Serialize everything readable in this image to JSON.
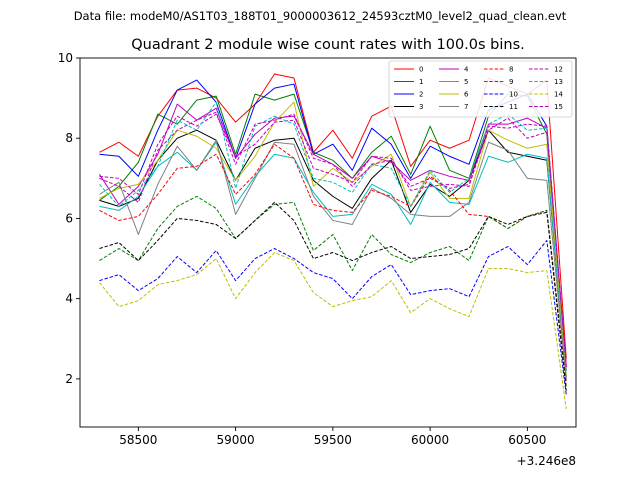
{
  "figure": {
    "suptitle": "Data file: modeM0/AS1T03_188T01_9000003612_24593cztM0_level2_quad_clean.evt"
  },
  "chart_data": {
    "type": "line",
    "title": "Quadrant 2 module wise count rates with 100.0s bins.",
    "xlabel": "",
    "ylabel": "",
    "x_offset_label": "+3.246e8",
    "xlim": [
      58200,
      60750
    ],
    "ylim": [
      0.8,
      10
    ],
    "xticks": [
      58500,
      59000,
      59500,
      60000,
      60500
    ],
    "xtick_labels": [
      "58500",
      "59000",
      "59500",
      "60000",
      "60500"
    ],
    "yticks": [
      2,
      4,
      6,
      8,
      10
    ],
    "ytick_labels": [
      "2",
      "4",
      "6",
      "8",
      "10"
    ],
    "grid": false,
    "legend_placement": "top-right",
    "x": [
      58300,
      58400,
      58500,
      58600,
      58700,
      58800,
      58900,
      59000,
      59100,
      59200,
      59300,
      59400,
      59500,
      59600,
      59700,
      59800,
      59900,
      60000,
      60100,
      60200,
      60300,
      60400,
      60500,
      60600,
      60700
    ],
    "series": [
      {
        "name": "0",
        "color": "#ff0000",
        "dash": "solid",
        "values": [
          7.65,
          7.9,
          7.55,
          8.55,
          9.2,
          9.25,
          9.0,
          8.4,
          8.85,
          9.6,
          9.5,
          7.65,
          8.2,
          7.5,
          8.55,
          8.8,
          7.3,
          7.95,
          7.75,
          7.95,
          9.5,
          9.3,
          9.1,
          9.45,
          2.5
        ]
      },
      {
        "name": "1",
        "color": "#008000",
        "dash": "solid",
        "values": [
          6.45,
          6.8,
          7.4,
          8.6,
          8.35,
          8.95,
          9.05,
          7.6,
          9.1,
          8.95,
          9.1,
          7.65,
          7.45,
          7.0,
          7.65,
          8.05,
          7.1,
          8.3,
          7.2,
          7.0,
          8.55,
          9.1,
          9.05,
          8.1,
          2.3
        ]
      },
      {
        "name": "2",
        "color": "#0000ff",
        "dash": "solid",
        "values": [
          7.6,
          7.55,
          7.05,
          8.2,
          9.2,
          9.45,
          8.9,
          7.5,
          8.85,
          9.25,
          9.35,
          7.6,
          7.85,
          7.2,
          8.25,
          7.85,
          7.0,
          7.8,
          7.55,
          7.35,
          8.7,
          8.9,
          9.1,
          8.3,
          2.2
        ]
      },
      {
        "name": "3",
        "color": "#000000",
        "dash": "solid",
        "values": [
          6.45,
          6.3,
          6.5,
          7.45,
          8.0,
          8.2,
          7.95,
          6.95,
          7.75,
          7.95,
          8.0,
          6.95,
          6.55,
          6.25,
          7.0,
          7.45,
          6.15,
          6.85,
          6.55,
          6.95,
          8.2,
          7.65,
          7.55,
          7.45,
          2.05
        ]
      },
      {
        "name": "4",
        "color": "#bf00bf",
        "dash": "solid",
        "values": [
          7.1,
          6.35,
          6.8,
          7.6,
          8.85,
          8.45,
          8.75,
          7.5,
          8.1,
          8.5,
          8.55,
          7.6,
          7.35,
          7.0,
          7.55,
          7.4,
          6.95,
          7.2,
          7.05,
          6.95,
          8.35,
          8.35,
          8.5,
          8.25,
          2.3
        ]
      },
      {
        "name": "5",
        "color": "#00bfbf",
        "dash": "solid",
        "values": [
          6.3,
          6.2,
          6.55,
          7.3,
          7.65,
          7.2,
          7.9,
          6.35,
          7.05,
          7.6,
          7.5,
          6.65,
          6.05,
          6.1,
          6.85,
          6.6,
          5.85,
          6.9,
          6.4,
          6.35,
          7.55,
          7.4,
          7.6,
          7.5,
          2.0
        ]
      },
      {
        "name": "6",
        "color": "#bfbf00",
        "dash": "solid",
        "values": [
          6.5,
          6.75,
          6.85,
          7.45,
          8.2,
          8.05,
          7.75,
          6.95,
          7.55,
          8.4,
          8.9,
          6.8,
          7.25,
          6.9,
          7.3,
          7.6,
          6.3,
          7.15,
          6.5,
          6.5,
          8.2,
          7.95,
          7.75,
          7.85,
          2.1
        ]
      },
      {
        "name": "7",
        "color": "#808080",
        "dash": "solid",
        "values": [
          6.6,
          6.9,
          5.6,
          6.85,
          7.8,
          7.2,
          7.95,
          6.1,
          7.0,
          7.9,
          7.85,
          6.55,
          5.95,
          5.85,
          6.75,
          6.5,
          6.1,
          6.05,
          6.05,
          6.4,
          7.9,
          7.7,
          7.0,
          6.95,
          1.95
        ]
      },
      {
        "name": "8",
        "color": "#ff0000",
        "dash": "dashed",
        "values": [
          6.2,
          5.95,
          6.05,
          6.6,
          7.25,
          7.3,
          7.6,
          6.6,
          7.1,
          7.85,
          7.5,
          6.35,
          6.2,
          6.15,
          6.7,
          6.55,
          6.3,
          7.05,
          6.7,
          6.1,
          6.05,
          5.75,
          6.05,
          6.2,
          1.9
        ]
      },
      {
        "name": "9",
        "color": "#008000",
        "dash": "dashed",
        "values": [
          4.95,
          5.25,
          4.95,
          5.75,
          6.3,
          6.55,
          6.25,
          5.5,
          5.95,
          6.35,
          6.4,
          5.2,
          5.6,
          4.7,
          5.6,
          5.1,
          4.9,
          5.15,
          5.3,
          4.95,
          6.05,
          5.75,
          6.05,
          6.2,
          1.8
        ]
      },
      {
        "name": "10",
        "color": "#0000ff",
        "dash": "dashed",
        "values": [
          4.45,
          4.6,
          4.2,
          4.5,
          5.05,
          4.65,
          5.2,
          4.45,
          5.0,
          5.25,
          5.0,
          4.65,
          4.5,
          4.0,
          4.55,
          4.85,
          4.1,
          4.2,
          4.25,
          4.05,
          5.05,
          5.3,
          4.85,
          5.45,
          1.6
        ]
      },
      {
        "name": "11",
        "color": "#000000",
        "dash": "dashed",
        "values": [
          5.25,
          5.4,
          4.95,
          5.45,
          6.0,
          5.95,
          5.85,
          5.5,
          5.95,
          6.4,
          5.95,
          5.0,
          5.15,
          4.95,
          5.15,
          5.3,
          5.0,
          5.05,
          5.1,
          5.25,
          6.05,
          5.85,
          6.05,
          6.15,
          1.7
        ]
      },
      {
        "name": "12",
        "color": "#bf00bf",
        "dash": "dashed",
        "values": [
          7.05,
          7.0,
          6.6,
          7.85,
          8.55,
          8.3,
          8.6,
          7.55,
          7.85,
          8.4,
          8.45,
          7.25,
          7.1,
          6.9,
          7.55,
          7.5,
          6.7,
          6.8,
          6.85,
          6.8,
          8.3,
          8.25,
          8.35,
          8.3,
          2.3
        ]
      },
      {
        "name": "13",
        "color": "#00bfbf",
        "dash": "dashed",
        "values": [
          6.85,
          6.3,
          6.7,
          7.3,
          8.45,
          8.2,
          8.9,
          6.75,
          8.3,
          8.55,
          8.35,
          7.0,
          6.9,
          6.65,
          7.35,
          7.25,
          6.3,
          7.2,
          6.65,
          7.0,
          8.35,
          8.6,
          8.2,
          8.25,
          2.2
        ]
      },
      {
        "name": "14",
        "color": "#bfbf00",
        "dash": "dashed",
        "values": [
          4.4,
          3.8,
          3.95,
          4.35,
          4.45,
          4.6,
          5.0,
          4.0,
          4.65,
          5.15,
          4.95,
          4.15,
          3.8,
          3.95,
          4.05,
          4.45,
          3.65,
          4.0,
          3.75,
          3.55,
          4.75,
          4.75,
          4.65,
          4.7,
          1.25
        ]
      },
      {
        "name": "15",
        "color": "#bf00bf",
        "dash": "dashed",
        "values": [
          7.0,
          6.8,
          6.4,
          7.7,
          8.2,
          8.45,
          8.65,
          7.35,
          8.35,
          8.45,
          8.6,
          7.5,
          7.35,
          6.8,
          7.35,
          7.45,
          6.8,
          7.0,
          6.75,
          6.85,
          8.2,
          8.5,
          8.0,
          8.15,
          2.3
        ]
      }
    ]
  }
}
